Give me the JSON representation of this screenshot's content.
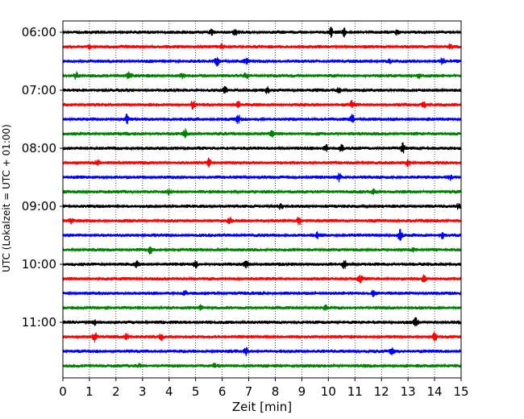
{
  "chart_data": {
    "type": "line",
    "title": "",
    "xlabel": "Zeit  [min]",
    "ylabel": "UTC (Lokalzeit = UTC + 01:00)",
    "xlim": [
      0,
      15
    ],
    "x_ticks": [
      0,
      1,
      2,
      3,
      4,
      5,
      6,
      7,
      8,
      9,
      10,
      11,
      12,
      13,
      14,
      15
    ],
    "x_tick_labels": [
      "0",
      "1",
      "2",
      "3",
      "4",
      "5",
      "6",
      "7",
      "8",
      "9",
      "10",
      "11",
      "12",
      "13",
      "14",
      "15"
    ],
    "y_tick_labels": [
      "06:00",
      "07:00",
      "08:00",
      "09:00",
      "10:00",
      "11:00"
    ],
    "vertical_grid": true,
    "vertical_grid_style": "dotted",
    "trace_colors": [
      "#000000",
      "#ff0000",
      "#0000ff",
      "#008000"
    ],
    "trace_interval_minutes": 15,
    "traces": [
      {
        "start": "06:00",
        "color": "#000000",
        "events": [
          [
            5.6,
            0.8
          ],
          [
            6.5,
            0.7
          ],
          [
            10.1,
            1.0
          ],
          [
            10.6,
            0.9
          ],
          [
            12.6,
            0.7
          ]
        ]
      },
      {
        "start": "06:15",
        "color": "#ff0000",
        "events": [
          [
            1.0,
            0.5
          ],
          [
            6.0,
            0.5
          ],
          [
            14.6,
            0.6
          ]
        ]
      },
      {
        "start": "06:30",
        "color": "#0000ff",
        "events": [
          [
            5.8,
            1.0
          ],
          [
            6.9,
            0.6
          ],
          [
            12.3,
            0.5
          ],
          [
            14.3,
            0.7
          ]
        ]
      },
      {
        "start": "06:45",
        "color": "#008000",
        "events": [
          [
            0.5,
            0.8
          ],
          [
            2.5,
            0.9
          ],
          [
            4.5,
            0.6
          ],
          [
            6.9,
            0.7
          ],
          [
            13.4,
            0.6
          ]
        ]
      },
      {
        "start": "07:00",
        "color": "#000000",
        "events": [
          [
            6.1,
            0.8
          ],
          [
            7.7,
            0.6
          ],
          [
            10.4,
            0.6
          ]
        ]
      },
      {
        "start": "07:15",
        "color": "#ff0000",
        "events": [
          [
            4.9,
            1.0
          ],
          [
            6.6,
            0.8
          ],
          [
            10.9,
            1.0
          ],
          [
            13.6,
            0.7
          ]
        ]
      },
      {
        "start": "07:30",
        "color": "#0000ff",
        "events": [
          [
            2.4,
            1.0
          ],
          [
            6.6,
            1.0
          ],
          [
            10.9,
            1.1
          ]
        ]
      },
      {
        "start": "07:45",
        "color": "#008000",
        "events": [
          [
            4.6,
            1.0
          ],
          [
            7.9,
            0.7
          ]
        ]
      },
      {
        "start": "08:00",
        "color": "#000000",
        "events": [
          [
            9.9,
            1.0
          ],
          [
            10.5,
            0.9
          ],
          [
            12.8,
            1.1
          ]
        ]
      },
      {
        "start": "08:15",
        "color": "#ff0000",
        "events": [
          [
            1.3,
            0.6
          ],
          [
            5.5,
            1.0
          ],
          [
            13.0,
            0.8
          ]
        ]
      },
      {
        "start": "08:30",
        "color": "#0000ff",
        "events": [
          [
            10.4,
            1.0
          ],
          [
            14.6,
            0.6
          ]
        ]
      },
      {
        "start": "08:45",
        "color": "#008000",
        "events": [
          [
            4.0,
            0.5
          ],
          [
            11.7,
            0.6
          ]
        ]
      },
      {
        "start": "09:00",
        "color": "#000000",
        "events": [
          [
            8.2,
            0.6
          ],
          [
            14.9,
            0.7
          ]
        ]
      },
      {
        "start": "09:15",
        "color": "#ff0000",
        "events": [
          [
            0.3,
            0.6
          ],
          [
            6.3,
            0.7
          ],
          [
            8.9,
            1.0
          ]
        ]
      },
      {
        "start": "09:30",
        "color": "#0000ff",
        "events": [
          [
            9.6,
            0.7
          ],
          [
            12.7,
            1.2
          ],
          [
            14.3,
            0.7
          ]
        ]
      },
      {
        "start": "09:45",
        "color": "#008000",
        "events": [
          [
            3.3,
            1.1
          ],
          [
            13.2,
            0.6
          ]
        ]
      },
      {
        "start": "10:00",
        "color": "#000000",
        "events": [
          [
            2.8,
            0.8
          ],
          [
            5.0,
            0.9
          ],
          [
            6.9,
            1.1
          ],
          [
            10.6,
            1.0
          ]
        ]
      },
      {
        "start": "10:15",
        "color": "#ff0000",
        "events": [
          [
            11.2,
            1.1
          ],
          [
            13.6,
            0.8
          ]
        ]
      },
      {
        "start": "10:30",
        "color": "#0000ff",
        "events": [
          [
            4.6,
            0.6
          ],
          [
            11.7,
            0.9
          ]
        ]
      },
      {
        "start": "10:45",
        "color": "#008000",
        "events": [
          [
            5.2,
            0.6
          ],
          [
            9.9,
            0.5
          ]
        ]
      },
      {
        "start": "11:00",
        "color": "#000000",
        "events": [
          [
            1.2,
            0.7
          ],
          [
            13.3,
            1.0
          ]
        ]
      },
      {
        "start": "11:15",
        "color": "#ff0000",
        "events": [
          [
            1.2,
            1.0
          ],
          [
            2.4,
            0.8
          ],
          [
            3.7,
            0.9
          ],
          [
            14.0,
            1.0
          ]
        ]
      },
      {
        "start": "11:30",
        "color": "#0000ff",
        "events": [
          [
            6.9,
            0.8
          ],
          [
            12.4,
            0.7
          ]
        ]
      },
      {
        "start": "11:45",
        "color": "#008000",
        "events": [
          [
            2.9,
            0.4
          ],
          [
            5.7,
            0.4
          ]
        ]
      }
    ]
  }
}
